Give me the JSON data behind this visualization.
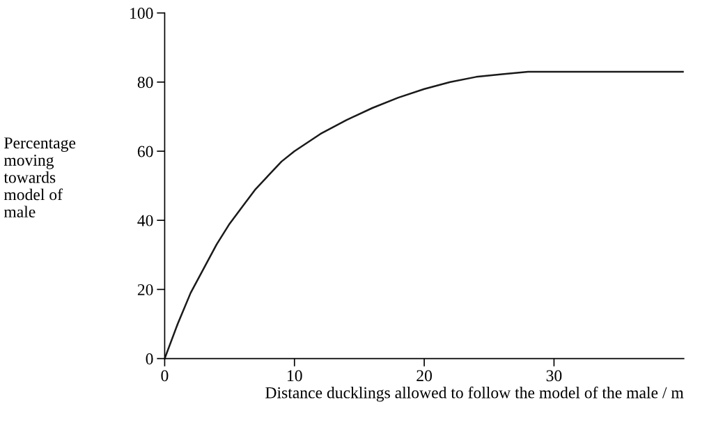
{
  "chart_data": {
    "type": "line",
    "xlabel": "Distance ducklings allowed to follow the model of the male / m",
    "ylabel": "Percentage\nmoving\ntowards\nmodel of\nmale",
    "x": [
      0,
      1,
      2,
      3,
      4,
      5,
      6,
      7,
      8,
      9,
      10,
      12,
      14,
      16,
      18,
      20,
      22,
      24,
      26,
      28,
      30,
      32,
      34,
      36,
      38,
      40
    ],
    "series": [
      {
        "color": "#1a1a1a",
        "values": [
          0,
          10,
          19,
          26,
          33,
          39,
          44,
          49,
          53,
          57,
          60,
          65,
          69,
          72.5,
          75.5,
          78,
          80,
          81.5,
          82.3,
          83,
          83,
          83,
          83,
          83,
          83,
          83
        ]
      }
    ],
    "xlim": [
      0,
      40
    ],
    "xticks": [
      0,
      10,
      20,
      30
    ],
    "ylim": [
      0,
      100
    ],
    "yticks": [
      0,
      20,
      40,
      60,
      80,
      100
    ],
    "grid": false,
    "legend": false,
    "marker": "none",
    "line_style": "solid"
  }
}
